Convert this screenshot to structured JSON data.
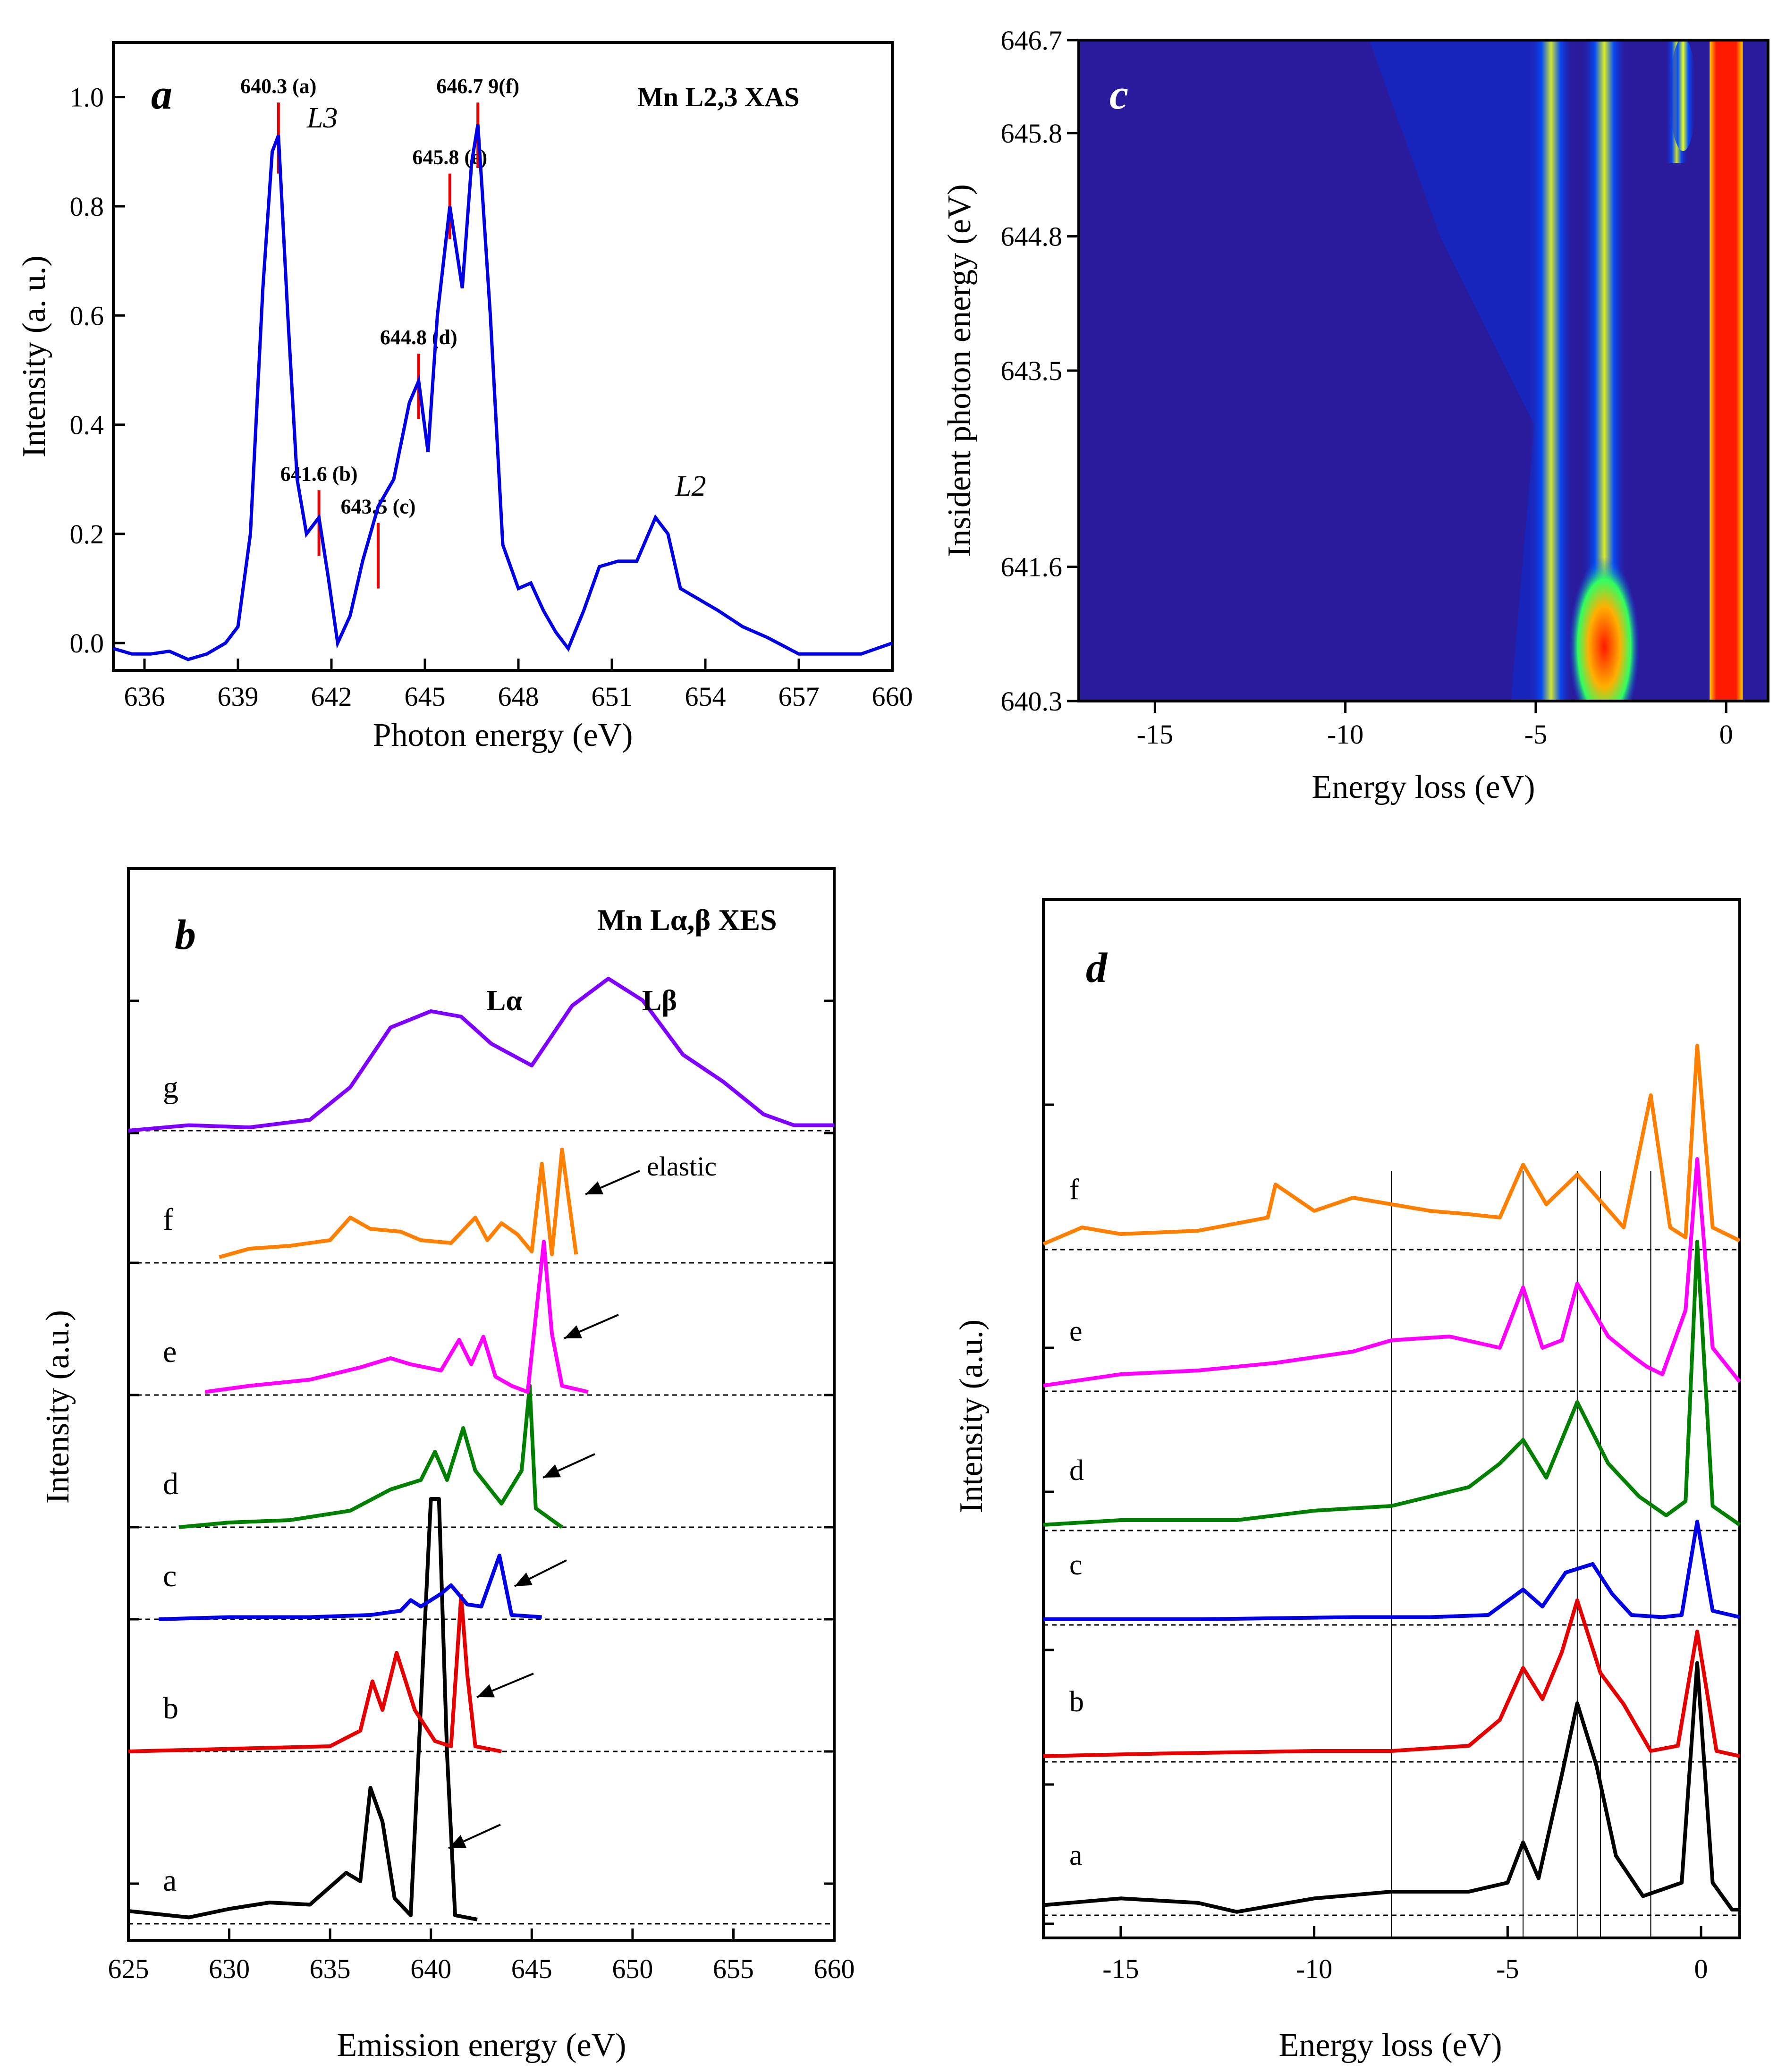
{
  "chart_data": [
    {
      "panel": "a",
      "type": "line",
      "title": "Mn L2,3 XAS",
      "xlabel": "Photon energy (eV)",
      "ylabel": "Intensity (a. u.)",
      "xlim": [
        635,
        660
      ],
      "ylim": [
        -0.05,
        1.1
      ],
      "xticks": [
        636,
        639,
        642,
        645,
        648,
        651,
        654,
        657,
        660
      ],
      "yticks": [
        0.0,
        0.2,
        0.4,
        0.6,
        0.8,
        1.0
      ],
      "series": [
        {
          "name": "XAS",
          "color": "#0000e6",
          "x": [
            635.0,
            635.6,
            636.2,
            636.8,
            637.4,
            638.0,
            638.6,
            639.0,
            639.4,
            639.8,
            640.1,
            640.3,
            640.6,
            640.9,
            641.2,
            641.6,
            641.9,
            642.2,
            642.6,
            643.0,
            643.5,
            644.0,
            644.5,
            644.8,
            645.1,
            645.4,
            645.8,
            646.2,
            646.5,
            646.7,
            647.1,
            647.5,
            648.0,
            648.4,
            648.8,
            649.2,
            649.6,
            650.1,
            650.6,
            651.2,
            651.8,
            652.4,
            652.8,
            653.2,
            653.8,
            654.4,
            655.2,
            656.0,
            657.0,
            658.0,
            659.0,
            660.0
          ],
          "y": [
            -0.01,
            -0.02,
            -0.02,
            -0.015,
            -0.03,
            -0.02,
            0.0,
            0.03,
            0.2,
            0.65,
            0.9,
            0.93,
            0.6,
            0.3,
            0.2,
            0.23,
            0.12,
            0.0,
            0.05,
            0.15,
            0.25,
            0.3,
            0.44,
            0.48,
            0.35,
            0.6,
            0.8,
            0.65,
            0.88,
            0.95,
            0.6,
            0.18,
            0.1,
            0.11,
            0.06,
            0.02,
            -0.01,
            0.06,
            0.14,
            0.15,
            0.15,
            0.23,
            0.2,
            0.1,
            0.08,
            0.06,
            0.03,
            0.01,
            -0.02,
            -0.02,
            -0.02,
            0.0
          ]
        }
      ],
      "markers": [
        {
          "label": "640.3 (a)",
          "x": 640.3,
          "y0": 0.86,
          "y1": 0.99
        },
        {
          "label": "641.6 (b)",
          "x": 641.6,
          "y0": 0.16,
          "y1": 0.28
        },
        {
          "label": "643.5 (c)",
          "x": 643.5,
          "y0": 0.1,
          "y1": 0.22
        },
        {
          "label": "644.8 (d)",
          "x": 644.8,
          "y0": 0.41,
          "y1": 0.53
        },
        {
          "label": "645.8 (e)",
          "x": 645.8,
          "y0": 0.74,
          "y1": 0.86
        },
        {
          "label": "646.7 9(f)",
          "x": 646.7,
          "y0": 0.87,
          "y1": 0.99
        }
      ],
      "annotations": [
        "L3",
        "L2"
      ]
    },
    {
      "panel": "b",
      "type": "line",
      "title": "Mn Lα,β XES",
      "xlabel": "Emission energy (eV)",
      "ylabel": "Intensity (a.u.)",
      "xlim": [
        625,
        660
      ],
      "xticks": [
        625,
        630,
        635,
        640,
        645,
        650,
        655,
        660
      ],
      "curve_labels": [
        "a",
        "b",
        "c",
        "d",
        "e",
        "f",
        "g"
      ],
      "annotations": [
        "Lα",
        "Lβ",
        "elastic"
      ],
      "series": [
        {
          "name": "a",
          "color": "#000000",
          "baseline": 0,
          "x": [
            625,
            628,
            630,
            632,
            634,
            635.8,
            636.5,
            637.0,
            637.6,
            638.2,
            639,
            640.0,
            640.4,
            640.8,
            641.2,
            642.3
          ],
          "y": [
            0.3,
            0.15,
            0.35,
            0.5,
            0.45,
            1.2,
            1.0,
            3.2,
            2.4,
            0.6,
            0.2,
            10.0,
            10.0,
            4.0,
            0.2,
            0.1
          ]
        },
        {
          "name": "b",
          "color": "#e60000",
          "baseline": 1,
          "x": [
            625,
            630,
            635,
            636.5,
            637.1,
            637.6,
            638.3,
            639.2,
            640.2,
            641.0,
            641.5,
            641.8,
            642.2,
            643.5
          ],
          "y": [
            0.0,
            0.05,
            0.1,
            0.4,
            1.35,
            0.8,
            1.9,
            0.8,
            0.2,
            0.1,
            3.0,
            1.5,
            0.1,
            0.0
          ]
        },
        {
          "name": "c",
          "color": "#0000e6",
          "baseline": 2,
          "x": [
            626.5,
            630,
            634,
            637,
            638.5,
            639,
            639.5,
            640.5,
            641,
            641.8,
            642.5,
            643.4,
            644,
            645.5
          ],
          "y": [
            0.0,
            0.05,
            0.05,
            0.1,
            0.2,
            0.45,
            0.3,
            0.6,
            0.8,
            0.35,
            0.3,
            1.5,
            0.1,
            0.05
          ]
        },
        {
          "name": "d",
          "color": "#008000",
          "baseline": 3,
          "x": [
            627.5,
            630,
            633,
            636,
            638,
            639.5,
            640.2,
            640.8,
            641.6,
            642.2,
            643.5,
            644.5,
            644.9,
            645.2,
            646.5
          ],
          "y": [
            0.0,
            0.1,
            0.15,
            0.35,
            0.8,
            1.0,
            1.6,
            1.0,
            2.1,
            1.2,
            0.5,
            1.2,
            3.0,
            0.4,
            0.0
          ]
        },
        {
          "name": "e",
          "color": "#ff00ff",
          "baseline": 4,
          "x": [
            628.8,
            631,
            634,
            636.5,
            638,
            639,
            640.5,
            641.4,
            642.0,
            642.6,
            643.2,
            644.0,
            644.8,
            645.6,
            646.0,
            646.5,
            647.8
          ],
          "y": [
            0.1,
            0.3,
            0.5,
            0.9,
            1.2,
            1.0,
            0.8,
            1.8,
            1.0,
            1.9,
            0.6,
            0.3,
            0.1,
            5.0,
            2.0,
            0.3,
            0.1
          ]
        },
        {
          "name": "f",
          "color": "#ff8000",
          "baseline": 5,
          "x": [
            629.5,
            631,
            633,
            635,
            636,
            637,
            638.5,
            639.5,
            641,
            642.2,
            642.8,
            643.5,
            644.3,
            645.0,
            645.5,
            646.0,
            646.5,
            647.2
          ],
          "y": [
            0.2,
            0.5,
            0.6,
            0.8,
            1.6,
            1.2,
            1.1,
            0.8,
            0.7,
            1.6,
            0.8,
            1.4,
            1.0,
            0.4,
            3.5,
            0.3,
            4.0,
            0.3
          ]
        },
        {
          "name": "g",
          "color": "#8000ff",
          "baseline": 6,
          "x": [
            625,
            628,
            631,
            634,
            636,
            638,
            640,
            641.5,
            643,
            645,
            647,
            648.8,
            650.5,
            652.5,
            654.5,
            656.5,
            658,
            660
          ],
          "y": [
            0.0,
            0.05,
            0.03,
            0.1,
            0.4,
            0.95,
            1.1,
            1.05,
            0.8,
            0.6,
            1.15,
            1.4,
            1.2,
            0.7,
            0.45,
            0.15,
            0.05,
            0.05
          ]
        }
      ]
    },
    {
      "panel": "c",
      "type": "heatmap",
      "xlabel": "Energy loss (eV)",
      "ylabel": "Insident photon energy (eV)",
      "xlim": [
        -17,
        1.1
      ],
      "ylim": [
        640.3,
        646.7
      ],
      "xticks": [
        -15,
        -10,
        -5,
        0
      ],
      "yticks": [
        640.3,
        641.6,
        643.5,
        644.8,
        645.8,
        646.7
      ],
      "bands": [
        {
          "loss": -4.6,
          "intensity": 0.75
        },
        {
          "loss": -3.2,
          "intensity": 0.85
        },
        {
          "loss": -1.3,
          "intensity": 0.7
        },
        {
          "loss": 0.0,
          "intensity": 1.0
        }
      ]
    },
    {
      "panel": "d",
      "type": "line",
      "xlabel": "Energy loss (eV)",
      "ylabel": "Intensity (a.u.)",
      "xlim": [
        -17,
        1
      ],
      "xticks": [
        -15,
        -10,
        -5,
        0
      ],
      "vlines": [
        -8.0,
        -4.6,
        -3.2,
        -2.6,
        -1.3
      ],
      "curve_labels": [
        "a",
        "b",
        "c",
        "d",
        "e",
        "f"
      ],
      "series": [
        {
          "name": "a",
          "color": "#000000",
          "baseline": 0,
          "x": [
            -17,
            -15,
            -13,
            -12,
            -10,
            -8,
            -6,
            -5,
            -4.6,
            -4.2,
            -3.6,
            -3.2,
            -2.7,
            -2.2,
            -1.5,
            -0.5,
            -0.1,
            0.3,
            0.8,
            1.0
          ],
          "y": [
            0.1,
            0.25,
            0.15,
            -0.05,
            0.25,
            0.4,
            0.4,
            0.6,
            1.5,
            0.7,
            3.0,
            4.6,
            3.2,
            1.2,
            0.3,
            0.6,
            5.5,
            0.6,
            0.0,
            0.0
          ]
        },
        {
          "name": "b",
          "color": "#e60000",
          "baseline": 1,
          "x": [
            -17,
            -14,
            -10,
            -8,
            -6,
            -5.2,
            -4.6,
            -4.1,
            -3.6,
            -3.2,
            -2.6,
            -2.0,
            -1.3,
            -0.6,
            -0.1,
            0.4,
            1.0
          ],
          "y": [
            0.0,
            0.05,
            0.1,
            0.1,
            0.2,
            0.7,
            1.7,
            1.1,
            2.0,
            3.0,
            1.6,
            1.0,
            0.1,
            0.2,
            2.4,
            0.1,
            0.0
          ]
        },
        {
          "name": "c",
          "color": "#0000e6",
          "baseline": 2,
          "x": [
            -17,
            -13,
            -9,
            -7,
            -5.5,
            -4.6,
            -4.1,
            -3.5,
            -2.8,
            -2.3,
            -1.8,
            -1.0,
            -0.5,
            -0.1,
            0.3,
            1.0
          ],
          "y": [
            0.0,
            0.0,
            0.05,
            0.05,
            0.1,
            0.7,
            0.3,
            1.1,
            1.3,
            0.6,
            0.1,
            0.05,
            0.1,
            2.3,
            0.2,
            0.05
          ]
        },
        {
          "name": "d",
          "color": "#008000",
          "baseline": 3,
          "x": [
            -17,
            -15,
            -12,
            -10,
            -8,
            -6,
            -5.2,
            -4.6,
            -4.0,
            -3.2,
            -2.4,
            -1.6,
            -0.9,
            -0.4,
            -0.1,
            0.3,
            1.0
          ],
          "y": [
            0.0,
            0.1,
            0.1,
            0.3,
            0.4,
            0.8,
            1.3,
            1.8,
            1.0,
            2.6,
            1.3,
            0.6,
            0.2,
            0.5,
            6.0,
            0.4,
            0.0
          ]
        },
        {
          "name": "e",
          "color": "#ff00ff",
          "baseline": 4,
          "x": [
            -17,
            -15,
            -13,
            -11,
            -9,
            -8,
            -6.5,
            -5.2,
            -4.6,
            -4.1,
            -3.6,
            -3.2,
            -2.4,
            -1.8,
            -1.4,
            -1.0,
            -0.4,
            -0.1,
            0.3,
            1.0
          ],
          "y": [
            0.0,
            0.3,
            0.4,
            0.6,
            0.9,
            1.2,
            1.3,
            1.0,
            2.6,
            1.0,
            1.2,
            2.7,
            1.3,
            0.8,
            0.5,
            0.3,
            2.0,
            6.0,
            1.0,
            0.1
          ]
        },
        {
          "name": "f",
          "color": "#ff8000",
          "baseline": 5,
          "x": [
            -17,
            -16,
            -15,
            -13,
            -11.2,
            -11,
            -10,
            -9,
            -8,
            -7,
            -6,
            -5.2,
            -4.6,
            -4.0,
            -3.2,
            -2.6,
            -2.0,
            -1.3,
            -0.8,
            -0.4,
            -0.1,
            0.3,
            1.0
          ],
          "y": [
            0.0,
            0.5,
            0.3,
            0.4,
            0.8,
            1.8,
            1.0,
            1.4,
            1.2,
            1.0,
            0.9,
            0.8,
            2.4,
            1.2,
            2.1,
            1.3,
            0.5,
            4.5,
            0.5,
            0.2,
            6.0,
            0.5,
            0.1
          ]
        }
      ]
    }
  ]
}
